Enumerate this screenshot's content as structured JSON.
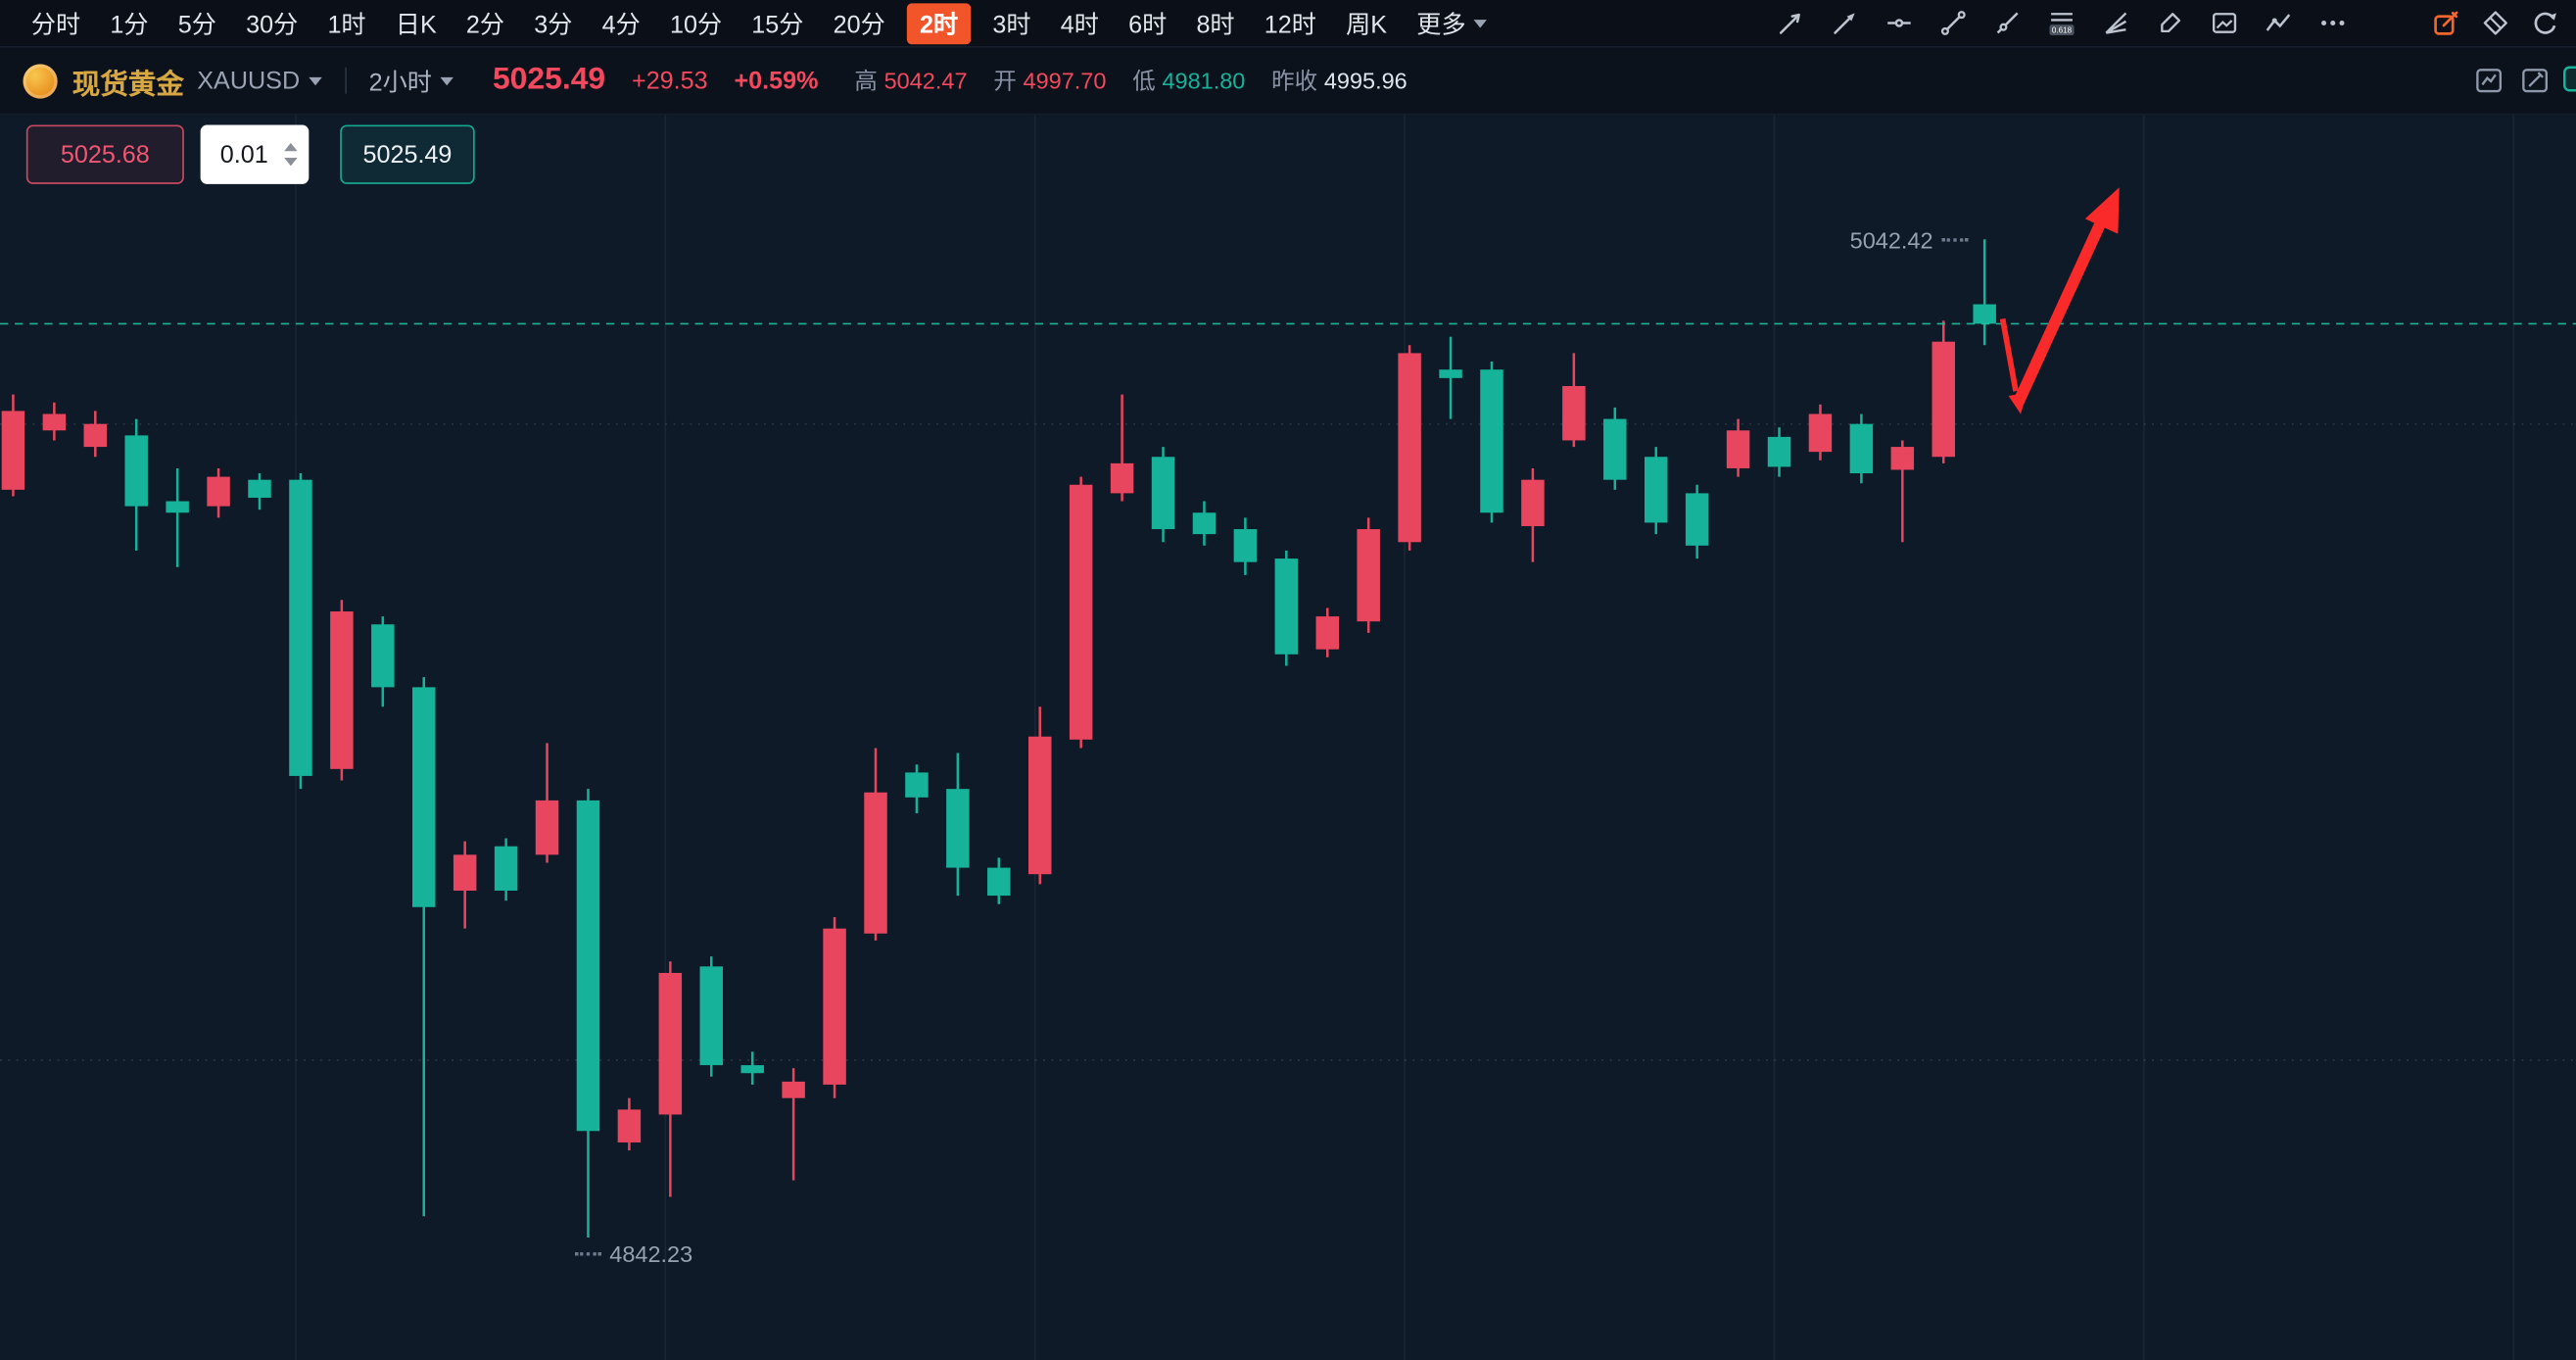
{
  "toolbar": {
    "timeframes": [
      {
        "label": "分时"
      },
      {
        "label": "1分"
      },
      {
        "label": "5分"
      },
      {
        "label": "30分"
      },
      {
        "label": "1时"
      },
      {
        "label": "日K"
      },
      {
        "label": "2分"
      },
      {
        "label": "3分"
      },
      {
        "label": "4分"
      },
      {
        "label": "10分"
      },
      {
        "label": "15分"
      },
      {
        "label": "20分"
      },
      {
        "label": "2时",
        "selected": true
      },
      {
        "label": "3时"
      },
      {
        "label": "4时"
      },
      {
        "label": "6时"
      },
      {
        "label": "8时"
      },
      {
        "label": "12时"
      },
      {
        "label": "周K"
      },
      {
        "label": "更多",
        "dropdown": true
      }
    ],
    "fib_badge": "0.618",
    "drawing_tools": [
      "trend-line",
      "arrow-line",
      "horizontal-line",
      "segment",
      "ray",
      "fibonacci",
      "fan-lines",
      "brush",
      "snapshot",
      "indicator",
      "more-tools"
    ],
    "actions": [
      "compose",
      "eraser",
      "undo"
    ]
  },
  "symbol_bar": {
    "name": "现货黄金",
    "symbol": "XAUUSD",
    "interval": "2小时",
    "last_price": "5025.49",
    "change": "+29.53",
    "change_percent": "+0.59%",
    "stats": [
      {
        "label": "高",
        "value": "5042.47",
        "trend": "up"
      },
      {
        "label": "开",
        "value": "4997.70",
        "trend": "up"
      },
      {
        "label": "低",
        "value": "4981.80",
        "trend": "down"
      },
      {
        "label": "昨收",
        "value": "4995.96",
        "trend": "flat"
      }
    ]
  },
  "trade_panel": {
    "sell_price": "5025.68",
    "quantity": "0.01",
    "buy_price": "5025.49"
  },
  "chart_data": {
    "type": "candlestick",
    "symbol": "XAUUSD",
    "interval": "2小时",
    "current_price": 5025.49,
    "high_marker": "5042.42",
    "low_marker": "4842.23",
    "price_range_visible": [
      4842.23,
      5042.42
    ],
    "up_color": "#e8455e",
    "down_color": "#16b29a",
    "dashed_line_color": "#1fc3a2",
    "annotations": [
      {
        "type": "small-arrow-down",
        "color": "#fb2a2a"
      },
      {
        "type": "large-arrow-up",
        "color": "#fb2a2a"
      }
    ],
    "candles": [
      [
        4992.2,
        5011.3,
        4990.9,
        5008.0
      ],
      [
        5004.1,
        5009.7,
        5002.1,
        5007.4
      ],
      [
        5000.8,
        5008.0,
        4998.8,
        5005.4
      ],
      [
        5003.1,
        5006.4,
        4980.0,
        4988.9
      ],
      [
        4989.9,
        4996.5,
        4976.7,
        4987.6
      ],
      [
        4988.9,
        4996.5,
        4986.6,
        4994.8
      ],
      [
        4994.2,
        4995.5,
        4988.2,
        4990.6
      ],
      [
        4994.2,
        4995.5,
        4932.2,
        4934.8
      ],
      [
        4936.2,
        4970.1,
        4933.9,
        4967.8
      ],
      [
        4965.2,
        4966.8,
        4948.7,
        4952.6
      ],
      [
        4952.6,
        4954.6,
        4846.5,
        4908.5
      ],
      [
        4911.8,
        4921.7,
        4904.2,
        4919.0
      ],
      [
        4920.7,
        4922.3,
        4909.8,
        4911.8
      ],
      [
        4919.0,
        4941.4,
        4917.4,
        4929.9
      ],
      [
        4929.9,
        4932.2,
        4842.23,
        4863.6
      ],
      [
        4861.3,
        4870.2,
        4859.7,
        4867.9
      ],
      [
        4866.9,
        4897.6,
        4850.4,
        4895.3
      ],
      [
        4896.6,
        4898.6,
        4874.5,
        4876.8
      ],
      [
        4876.8,
        4879.5,
        4872.9,
        4875.2
      ],
      [
        4870.2,
        4876.2,
        4853.7,
        4873.5
      ],
      [
        4872.9,
        4906.5,
        4870.2,
        4904.2
      ],
      [
        4903.2,
        4940.4,
        4901.8,
        4931.5
      ],
      [
        4935.5,
        4937.1,
        4927.3,
        4930.5
      ],
      [
        4932.2,
        4939.4,
        4910.8,
        4916.4
      ],
      [
        4916.4,
        4918.4,
        4909.1,
        4910.8
      ],
      [
        4915.1,
        4948.7,
        4913.1,
        4942.7
      ],
      [
        4942.1,
        4994.8,
        4940.4,
        4993.2
      ],
      [
        4991.5,
        5011.3,
        4989.9,
        4997.5
      ],
      [
        4998.8,
        5000.8,
        4981.7,
        4984.3
      ],
      [
        4987.6,
        4989.9,
        4981.0,
        4983.3
      ],
      [
        4984.3,
        4986.6,
        4975.1,
        4977.7
      ],
      [
        4978.4,
        4980.0,
        4956.9,
        4959.2
      ],
      [
        4960.2,
        4968.5,
        4958.6,
        4966.8
      ],
      [
        4965.8,
        4986.6,
        4963.5,
        4984.3
      ],
      [
        4981.7,
        5021.2,
        4980.0,
        5019.6
      ],
      [
        5016.3,
        5022.9,
        5006.4,
        5014.6
      ],
      [
        5016.3,
        5017.9,
        4985.6,
        4987.6
      ],
      [
        4984.9,
        4996.5,
        4977.7,
        4994.2
      ],
      [
        5002.1,
        5019.6,
        5000.8,
        5013.0
      ],
      [
        5006.4,
        5008.7,
        4992.2,
        4994.2
      ],
      [
        4998.8,
        5000.8,
        4983.3,
        4985.6
      ],
      [
        4991.5,
        4993.2,
        4978.4,
        4981.0
      ],
      [
        4996.5,
        5006.4,
        4994.8,
        5004.1
      ],
      [
        5002.8,
        5004.7,
        4994.8,
        4996.8
      ],
      [
        4999.8,
        5009.3,
        4998.1,
        5007.4
      ],
      [
        5005.4,
        5007.4,
        4993.5,
        4995.5
      ],
      [
        4996.2,
        5002.1,
        4981.7,
        5000.8
      ],
      [
        4998.8,
        5026.1,
        4997.5,
        5021.9
      ],
      [
        5029.4,
        5042.42,
        5021.2,
        5025.49
      ]
    ]
  },
  "colors": {
    "up": "#e8455e",
    "down": "#16b29a",
    "accent_selected_timeframe": "#f2552a",
    "gold_name": "#d6a743",
    "annotation_red": "#fb2a2a",
    "dashed_price_line": "#1fc3a2"
  }
}
